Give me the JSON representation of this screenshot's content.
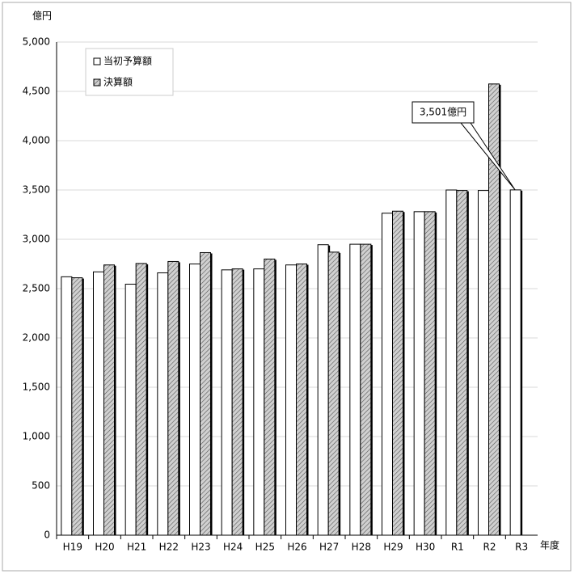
{
  "chart_data": {
    "type": "bar",
    "y_label": "億円",
    "x_label": "年度",
    "categories": [
      "H19",
      "H20",
      "H21",
      "H22",
      "H23",
      "H24",
      "H25",
      "H26",
      "H27",
      "H28",
      "H29",
      "H30",
      "R1",
      "R2",
      "R3"
    ],
    "series": [
      {
        "name": "当初予算額",
        "color": "#ffffff",
        "values": [
          2620,
          2670,
          2545,
          2660,
          2750,
          2690,
          2700,
          2740,
          2945,
          2950,
          3265,
          3280,
          3500,
          3495,
          3501
        ]
      },
      {
        "name": "決算額",
        "color": "#d0d0d0",
        "values": [
          2610,
          2740,
          2755,
          2775,
          2865,
          2700,
          2800,
          2750,
          2870,
          2950,
          3285,
          3280,
          3495,
          4575,
          null
        ]
      }
    ],
    "annotation": "3,501億円",
    "ylim": [
      0,
      5000
    ],
    "yticks": [
      0,
      {
        "value": 500,
        "label": "500"
      },
      {
        "value": 1000,
        "label": "1,000"
      },
      {
        "value": 1500,
        "label": "1,500"
      },
      {
        "value": 2000,
        "label": "2,000"
      },
      {
        "value": 2500,
        "label": "2,500"
      },
      {
        "value": 3000,
        "label": "3,000"
      },
      {
        "value": 3500,
        "label": "3,500"
      },
      {
        "value": 4000,
        "label": "4,000"
      },
      {
        "value": 4500,
        "label": "4,500"
      },
      {
        "value": 5000,
        "label": "5,000"
      }
    ],
    "grid": true
  }
}
